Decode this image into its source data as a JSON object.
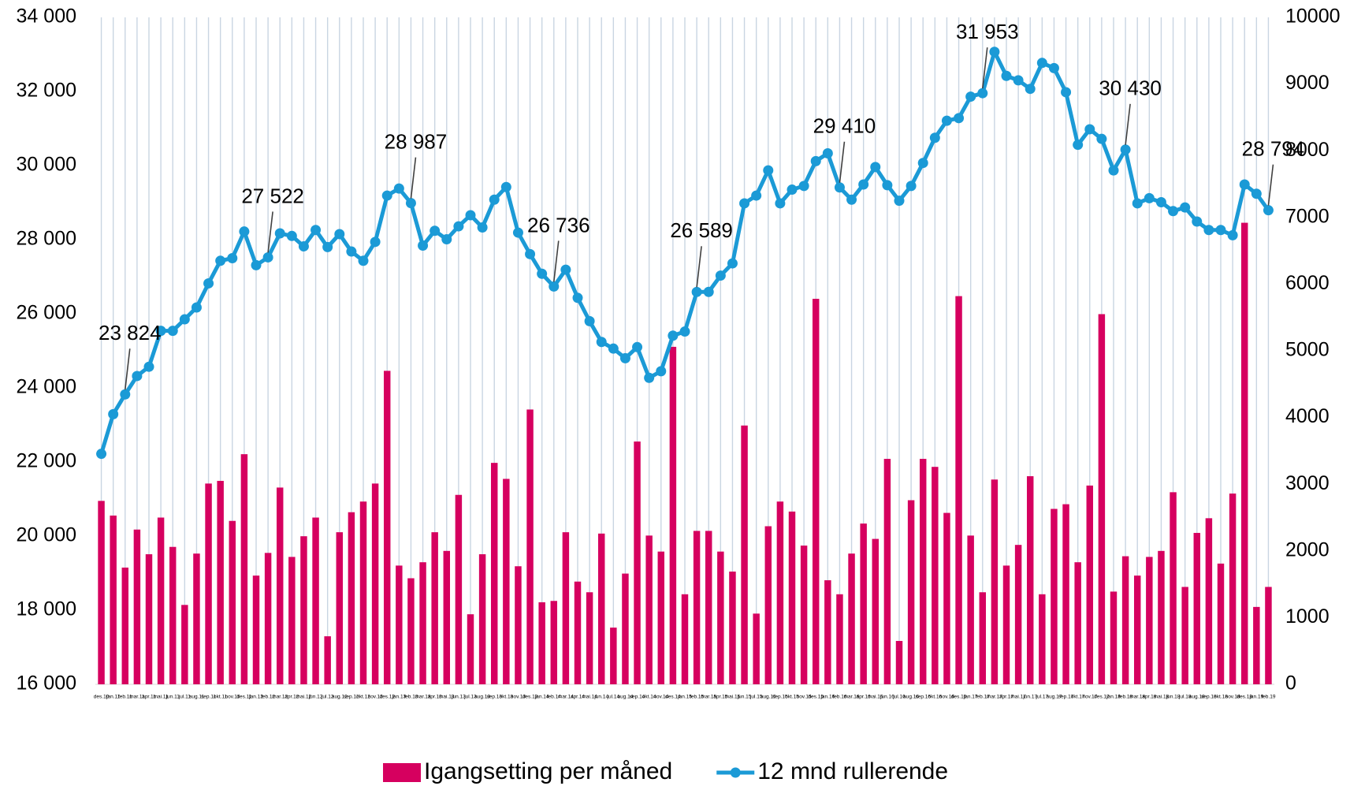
{
  "chart_data": {
    "type": "bar",
    "categories": [
      "des.10",
      "jan.11",
      "feb.11",
      "mar.11",
      "apr.11",
      "mai.11",
      "jun.11",
      "jul.11",
      "aug.11",
      "sep.11",
      "okt.11",
      "nov.11",
      "des.11",
      "jan.12",
      "feb.12",
      "mar.12",
      "apr.12",
      "mai.12",
      "jun.12",
      "jul.12",
      "aug.12",
      "sep.12",
      "okt.12",
      "nov.12",
      "des.12",
      "jan.13",
      "feb.13",
      "mar.13",
      "apr.13",
      "mai.13",
      "jun.13",
      "jul.13",
      "aug.13",
      "sep.13",
      "okt.13",
      "nov.13",
      "des.13",
      "jan.14",
      "feb.14",
      "mar.14",
      "apr.14",
      "mai.14",
      "jun.14",
      "jul.14",
      "aug.14",
      "sep.14",
      "okt.14",
      "nov.14",
      "des.14",
      "jan.15",
      "feb.15",
      "mar.15",
      "apr.15",
      "mai.15",
      "jun.15",
      "jul.15",
      "aug.15",
      "sep.15",
      "okt.15",
      "nov.15",
      "des.15",
      "jan.16",
      "feb.16",
      "mar.16",
      "apr.16",
      "mai.16",
      "jun.16",
      "jul.16",
      "aug.16",
      "sep.16",
      "okt.16",
      "nov.16",
      "des.16",
      "jan.17",
      "feb.17",
      "mar.17",
      "apr.17",
      "mai.17",
      "jun.17",
      "jul.17",
      "aug.17",
      "sep.17",
      "okt.17",
      "nov.17",
      "des.17",
      "jan.18",
      "feb.18",
      "mar.18",
      "apr.18",
      "mai.18",
      "jun.18",
      "jul.18",
      "aug.18",
      "sep.18",
      "okt.18",
      "nov.18",
      "des.18",
      "jan.19",
      "feb.19"
    ],
    "series": [
      {
        "name": "Igangsetting per måned",
        "type": "bar",
        "axis": "y2",
        "color": "#d6005f",
        "values": [
          2750,
          2530,
          1750,
          2320,
          1950,
          2500,
          2060,
          1190,
          1960,
          3010,
          3050,
          2450,
          3450,
          1630,
          1970,
          2950,
          1910,
          2220,
          2500,
          720,
          2280,
          2580,
          2740,
          3010,
          4700,
          1780,
          1590,
          1830,
          2280,
          2000,
          2840,
          1050,
          1950,
          3320,
          3080,
          1770,
          4120,
          1230,
          1250,
          2280,
          1540,
          1380,
          2260,
          850,
          1660,
          3640,
          2230,
          1990,
          5060,
          1350,
          2300,
          2300,
          1990,
          1690,
          3880,
          1060,
          2370,
          2740,
          2590,
          2080,
          5780,
          1560,
          1350,
          1960,
          2410,
          2180,
          3380,
          650,
          2760,
          3380,
          3260,
          2570,
          5820,
          2230,
          1380,
          3070,
          1780,
          2090,
          3120,
          1350,
          2630,
          2700,
          1830,
          2980,
          5550,
          1390,
          1920,
          1630,
          1910,
          2000,
          2880,
          1460,
          2270,
          2490,
          1810,
          2860,
          6920,
          1160,
          1460
        ]
      },
      {
        "name": "12 mnd rullerende",
        "type": "line",
        "color": "#1b9ad6",
        "values": [
          22220,
          23290,
          23824,
          24320,
          24570,
          25540,
          25540,
          25850,
          26170,
          26820,
          27430,
          27500,
          28220,
          27310,
          27522,
          28170,
          28100,
          27820,
          28260,
          27800,
          28150,
          27680,
          27430,
          27940,
          29190,
          29380,
          28987,
          27840,
          28240,
          28010,
          28360,
          28660,
          28330,
          29080,
          29420,
          28190,
          27610,
          27080,
          26736,
          27190,
          26430,
          25800,
          25240,
          25060,
          24800,
          25100,
          24270,
          24450,
          25410,
          25520,
          26589,
          26590,
          27030,
          27360,
          28980,
          29190,
          29870,
          28980,
          29350,
          29450,
          30120,
          30330,
          29410,
          29080,
          29490,
          29960,
          29470,
          29050,
          29450,
          30070,
          30750,
          31210,
          31280,
          31860,
          31953,
          33070,
          32420,
          32300,
          32070,
          32770,
          32630,
          31980,
          30560,
          30980,
          30720,
          29870,
          30430,
          28980,
          29120,
          29010,
          28770,
          28870,
          28490,
          28260,
          28260,
          28120,
          29490,
          29240,
          28794
        ],
        "value_labels": [
          null,
          null,
          "23 824",
          null,
          null,
          null,
          null,
          null,
          null,
          null,
          null,
          null,
          null,
          null,
          "27 522",
          null,
          null,
          null,
          null,
          null,
          null,
          null,
          null,
          null,
          null,
          null,
          "28 987",
          null,
          null,
          null,
          null,
          null,
          null,
          null,
          null,
          null,
          null,
          null,
          "26 736",
          null,
          null,
          null,
          null,
          null,
          null,
          null,
          null,
          null,
          null,
          null,
          "26 589",
          null,
          null,
          null,
          null,
          null,
          null,
          null,
          null,
          null,
          null,
          null,
          "29 410",
          null,
          null,
          null,
          null,
          null,
          null,
          null,
          null,
          null,
          null,
          null,
          "31 953",
          null,
          null,
          null,
          null,
          null,
          null,
          null,
          null,
          null,
          null,
          null,
          "30 430",
          null,
          null,
          null,
          null,
          null,
          null,
          null,
          null,
          null,
          null,
          null,
          "28 794"
        ]
      }
    ],
    "ylim": [
      16000,
      34000
    ],
    "yticks": [
      {
        "value": 16000,
        "label": "16 000"
      },
      {
        "value": 18000,
        "label": "18 000"
      },
      {
        "value": 20000,
        "label": "20 000"
      },
      {
        "value": 22000,
        "label": "22 000"
      },
      {
        "value": 24000,
        "label": "24 000"
      },
      {
        "value": 26000,
        "label": "26 000"
      },
      {
        "value": 28000,
        "label": "28 000"
      },
      {
        "value": 30000,
        "label": "30 000"
      },
      {
        "value": 32000,
        "label": "32 000"
      },
      {
        "value": 34000,
        "label": "34 000"
      }
    ],
    "y2lim": [
      0,
      10000
    ],
    "y2ticks": [
      0,
      1000,
      2000,
      3000,
      4000,
      5000,
      6000,
      7000,
      8000,
      9000,
      10000
    ],
    "grid": "vertical",
    "legend": "bottom"
  }
}
